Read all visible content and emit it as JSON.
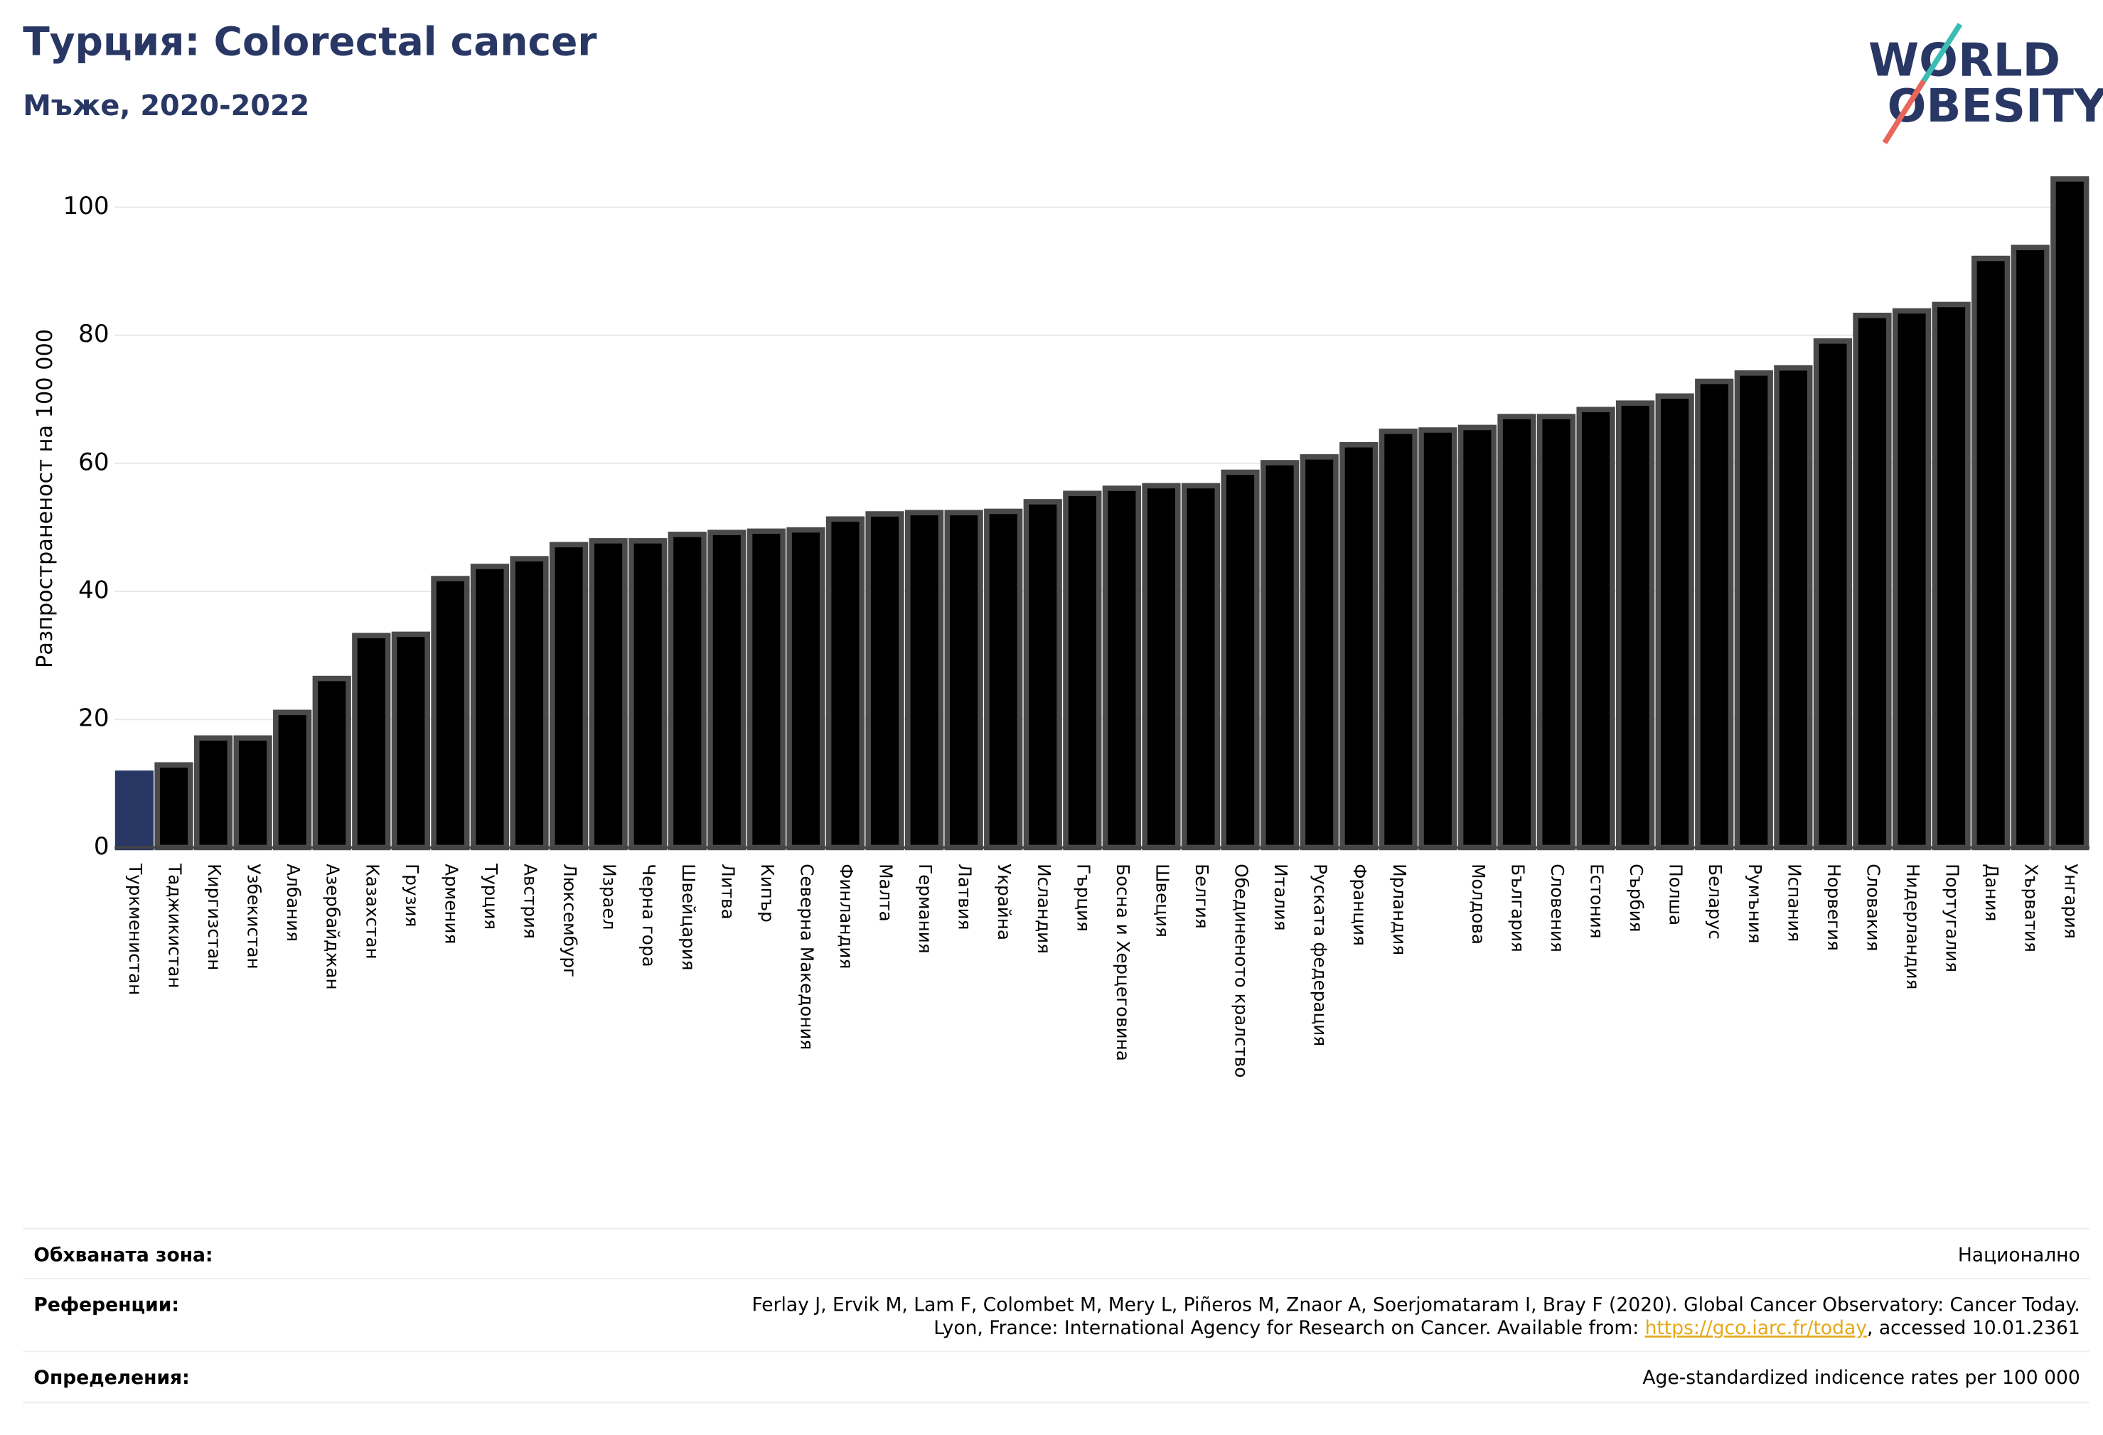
{
  "chart_data": {
    "type": "bar",
    "title": "Турция: Colorectal cancer",
    "subtitle": "Мъже, 2020-2022",
    "y_label": "Разпространеност  на 100 000",
    "categories": [
      "Туркменистан",
      "Таджикистан",
      "Киргизстан",
      "Узбекистан",
      "Албания",
      "Азербайджан",
      "Казахстан",
      "Грузия",
      "Армения",
      "Турция",
      "Австрия",
      "Люксембург",
      "Израел",
      "Черна гора",
      "Швейцария",
      "Литва",
      "Кипър",
      "Северна Македония",
      "Финландия",
      "Малта",
      "Германия",
      "Латвия",
      "Украйна",
      "Исландия",
      "Гърция",
      "Босна и Херцеговина",
      "Швеция",
      "Белгия",
      "Обединеното кралство",
      "Италия",
      "Руската федерация",
      "Франция",
      "Ирландия",
      null,
      "Молдова",
      "България",
      "Словения",
      "Естония",
      "Сърбия",
      "Полша",
      "Беларус",
      "Румъния",
      "Испания",
      "Норвегия",
      "Словакия",
      "Нидерландия",
      "Португалия",
      "Дания",
      "Хърватия",
      "Унгария"
    ],
    "values": [
      11.6,
      12.9,
      17.1,
      17.1,
      21.1,
      26.4,
      33.1,
      33.3,
      42.0,
      43.9,
      45.1,
      47.3,
      47.9,
      47.9,
      48.9,
      49.2,
      49.4,
      49.6,
      51.3,
      52.1,
      52.3,
      52.3,
      52.5,
      54.0,
      55.3,
      56.1,
      56.5,
      56.5,
      58.6,
      60.1,
      61.0,
      62.9,
      65.0,
      65.2,
      65.6,
      67.3,
      67.3,
      68.4,
      69.4,
      70.5,
      72.8,
      74.1,
      74.9,
      79.1,
      83.1,
      83.8,
      84.8,
      92.0,
      93.7,
      104.4
    ],
    "colors": [
      "#283764",
      "#000000",
      "#000000",
      "#000000",
      "#000000",
      "#000000",
      "#000000",
      "#000000",
      "#000000",
      "#000000",
      "#000000",
      "#000000",
      "#000000",
      "#000000",
      "#000000",
      "#000000",
      "#000000",
      "#000000",
      "#000000",
      "#000000",
      "#000000",
      "#000000",
      "#000000",
      "#000000",
      "#000000",
      "#000000",
      "#000000",
      "#000000",
      "#000000",
      "#000000",
      "#000000",
      "#000000",
      "#000000",
      "#000000",
      "#000000",
      "#000000",
      "#000000",
      "#000000",
      "#000000",
      "#000000",
      "#000000",
      "#000000",
      "#000000",
      "#000000",
      "#000000",
      "#000000",
      "#000000",
      "#000000",
      "#000000",
      "#000000"
    ],
    "edge_colors": [
      "#283764",
      "#4a4a4a",
      "#4a4a4a",
      "#4a4a4a",
      "#4a4a4a",
      "#4a4a4a",
      "#4a4a4a",
      "#4a4a4a",
      "#4a4a4a",
      "#4a4a4a",
      "#4a4a4a",
      "#4a4a4a",
      "#4a4a4a",
      "#4a4a4a",
      "#4a4a4a",
      "#4a4a4a",
      "#4a4a4a",
      "#4a4a4a",
      "#4a4a4a",
      "#4a4a4a",
      "#4a4a4a",
      "#4a4a4a",
      "#4a4a4a",
      "#4a4a4a",
      "#4a4a4a",
      "#4a4a4a",
      "#4a4a4a",
      "#4a4a4a",
      "#4a4a4a",
      "#4a4a4a",
      "#4a4a4a",
      "#4a4a4a",
      "#4a4a4a",
      "#4a4a4a",
      "#4a4a4a",
      "#4a4a4a",
      "#4a4a4a",
      "#4a4a4a",
      "#4a4a4a",
      "#4a4a4a",
      "#4a4a4a",
      "#4a4a4a",
      "#4a4a4a",
      "#4a4a4a",
      "#4a4a4a",
      "#4a4a4a",
      "#4a4a4a",
      "#4a4a4a",
      "#4a4a4a",
      "#4a4a4a"
    ],
    "ylim": [
      0,
      105
    ],
    "yticks": [
      0,
      20,
      40,
      60,
      80,
      100
    ],
    "grid": true
  },
  "logo": [
    "WORLD",
    "OBESITY"
  ],
  "footer": {
    "coverage_label": "Обхваната зона:",
    "coverage": "Национално",
    "references_label": "Референции:",
    "references_line1": "Ferlay J, Ervik M, Lam F, Colombet M, Mery L, Piñeros M, Znaor A, Soerjomataram I, Bray F (2020). Global Cancer Observatory: Cancer Today.",
    "references_line2_before": "Lyon, France: International Agency for Research on Cancer. Available from: ",
    "references_link": "https://gco.iarc.fr/today",
    "references_line2_after": ", accessed 10.01.2361",
    "definitions_label": "Определения:",
    "definitions": "Age-standardized indicence rates per 100 000"
  }
}
